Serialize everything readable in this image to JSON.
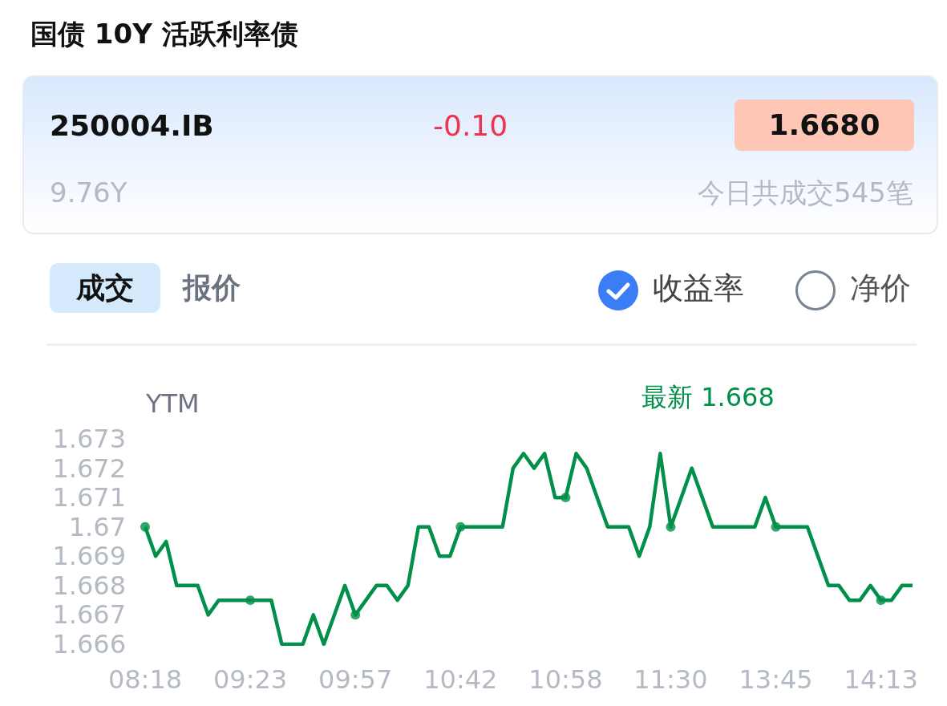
{
  "chart_data": {
    "type": "line",
    "title": "国债 10Y 活跃利率债",
    "ylabel": "YTM",
    "annotations": [
      "250004.IB",
      "-0.10",
      "1.6680",
      "9.76Y",
      "今日共成交545笔",
      "成交",
      "报价",
      "收益率",
      "净价",
      "最新 1.668"
    ],
    "categories": [
      "08:18",
      null,
      null,
      null,
      null,
      null,
      null,
      null,
      null,
      null,
      "09:23",
      null,
      null,
      null,
      null,
      null,
      null,
      null,
      null,
      null,
      "09:57",
      null,
      null,
      null,
      null,
      null,
      null,
      null,
      null,
      null,
      "10:42",
      null,
      null,
      null,
      null,
      null,
      null,
      null,
      null,
      null,
      "10:58",
      null,
      null,
      null,
      null,
      null,
      null,
      null,
      null,
      null,
      "11:30",
      null,
      null,
      null,
      null,
      null,
      null,
      null,
      null,
      null,
      "13:45",
      null,
      null,
      null,
      null,
      null,
      null,
      null,
      null,
      null,
      "14:13",
      null,
      null,
      null
    ],
    "series": [
      {
        "color": "#00904a",
        "values": [
          1.67,
          1.669,
          1.6695,
          1.668,
          1.668,
          1.668,
          1.667,
          1.6675,
          1.6675,
          1.6675,
          1.6675,
          1.6675,
          1.6675,
          1.666,
          1.666,
          1.666,
          1.667,
          1.666,
          1.667,
          1.668,
          1.667,
          1.6675,
          1.668,
          1.668,
          1.6675,
          1.668,
          1.67,
          1.67,
          1.669,
          1.669,
          1.67,
          1.67,
          1.67,
          1.67,
          1.67,
          1.672,
          1.6725,
          1.672,
          1.6725,
          1.671,
          1.671,
          1.6725,
          1.672,
          1.671,
          1.67,
          1.67,
          1.67,
          1.669,
          1.67,
          1.6725,
          1.67,
          1.671,
          1.672,
          1.671,
          1.67,
          1.67,
          1.67,
          1.67,
          1.67,
          1.671,
          1.67,
          1.67,
          1.67,
          1.67,
          1.669,
          1.668,
          1.668,
          1.6675,
          1.6675,
          1.668,
          1.6675,
          1.6675,
          1.668,
          1.668
        ]
      },
      {
        "type": "scatter",
        "color": "#00904a",
        "marker": "circle",
        "x": [
          "08:18",
          "09:23",
          "09:57",
          "10:42",
          "10:58",
          "11:30",
          "13:45",
          "14:13"
        ],
        "values": [
          1.67,
          1.6675,
          1.667,
          1.67,
          1.671,
          1.67,
          1.67,
          1.6675
        ]
      }
    ],
    "ylim": [
      1.666,
      1.673
    ],
    "yticks": [
      1.666,
      1.667,
      1.668,
      1.669,
      1.67,
      1.671,
      1.672,
      1.673
    ],
    "grid": false,
    "line_style": "solid"
  }
}
